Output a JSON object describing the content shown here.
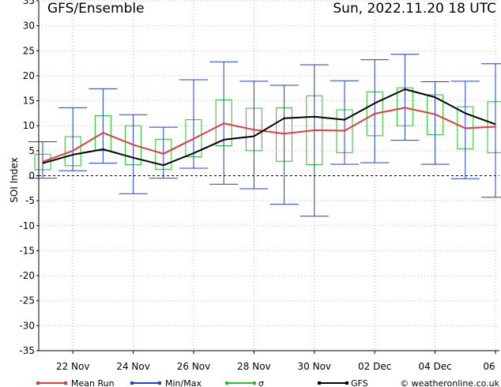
{
  "title_left": "GFS/Ensemble",
  "title_right": "Sun, 2022.11.20   18 UTC",
  "credit": "© weatheronline.co.uk",
  "colors": {
    "mean": "#e03c3c",
    "minmax": "#1f3fd0",
    "sigma": "#22c522",
    "gfs": "#000000",
    "grid": "#b9b9b9"
  },
  "chart_data": {
    "type": "line",
    "ylabel": "SOI Index",
    "ylim": [
      -35,
      35
    ],
    "yticks": [
      -35,
      -30,
      -25,
      -20,
      -15,
      -10,
      -5,
      0,
      5,
      10,
      15,
      20,
      25,
      30,
      35
    ],
    "xticks": [
      "22 Nov",
      "24 Nov",
      "26 Nov",
      "28 Nov",
      "30 Nov",
      "02 Dec",
      "04 Dec",
      "06"
    ],
    "x": [
      0,
      1,
      2,
      3,
      4,
      5,
      6,
      7,
      8,
      9,
      10,
      11,
      12,
      13,
      14,
      15
    ],
    "legend": [
      "Mean Run",
      "Min/Max",
      "σ",
      "GFS"
    ],
    "series": [
      {
        "name": "Mean Run",
        "values": [
          2.8,
          5.0,
          8.6,
          6.2,
          4.4,
          7.4,
          10.5,
          9.2,
          8.4,
          9.1,
          9.0,
          12.4,
          13.6,
          12.3,
          9.5,
          9.8
        ]
      },
      {
        "name": "GFS",
        "values": [
          2.5,
          4.2,
          5.3,
          3.6,
          2.1,
          4.5,
          7.2,
          7.9,
          11.5,
          11.8,
          11.2,
          14.5,
          17.3,
          15.7,
          12.5,
          10.3
        ]
      }
    ],
    "minmax": [
      [
        -0.5,
        6.8
      ],
      [
        1.0,
        13.6
      ],
      [
        2.5,
        17.4
      ],
      [
        -3.6,
        12.2
      ],
      [
        -0.5,
        9.7
      ],
      [
        1.5,
        19.2
      ],
      [
        -1.7,
        22.8
      ],
      [
        -2.6,
        18.9
      ],
      [
        -5.7,
        18.1
      ],
      [
        -8.1,
        22.2
      ],
      [
        2.3,
        19.0
      ],
      [
        2.6,
        23.2
      ],
      [
        7.1,
        24.3
      ],
      [
        2.3,
        18.8
      ],
      [
        -0.6,
        18.9
      ],
      [
        -4.3,
        22.4
      ]
    ],
    "sigma": [
      [
        1.2,
        4.3
      ],
      [
        2.0,
        7.8
      ],
      [
        5.0,
        12.0
      ],
      [
        2.2,
        10.0
      ],
      [
        1.3,
        7.3
      ],
      [
        3.8,
        11.2
      ],
      [
        6.0,
        15.2
      ],
      [
        5.0,
        13.5
      ],
      [
        2.9,
        13.6
      ],
      [
        2.2,
        16.0
      ],
      [
        4.6,
        13.2
      ],
      [
        8.0,
        16.8
      ],
      [
        10.0,
        17.6
      ],
      [
        8.2,
        16.2
      ],
      [
        5.4,
        13.8
      ],
      [
        4.6,
        14.8
      ]
    ]
  }
}
